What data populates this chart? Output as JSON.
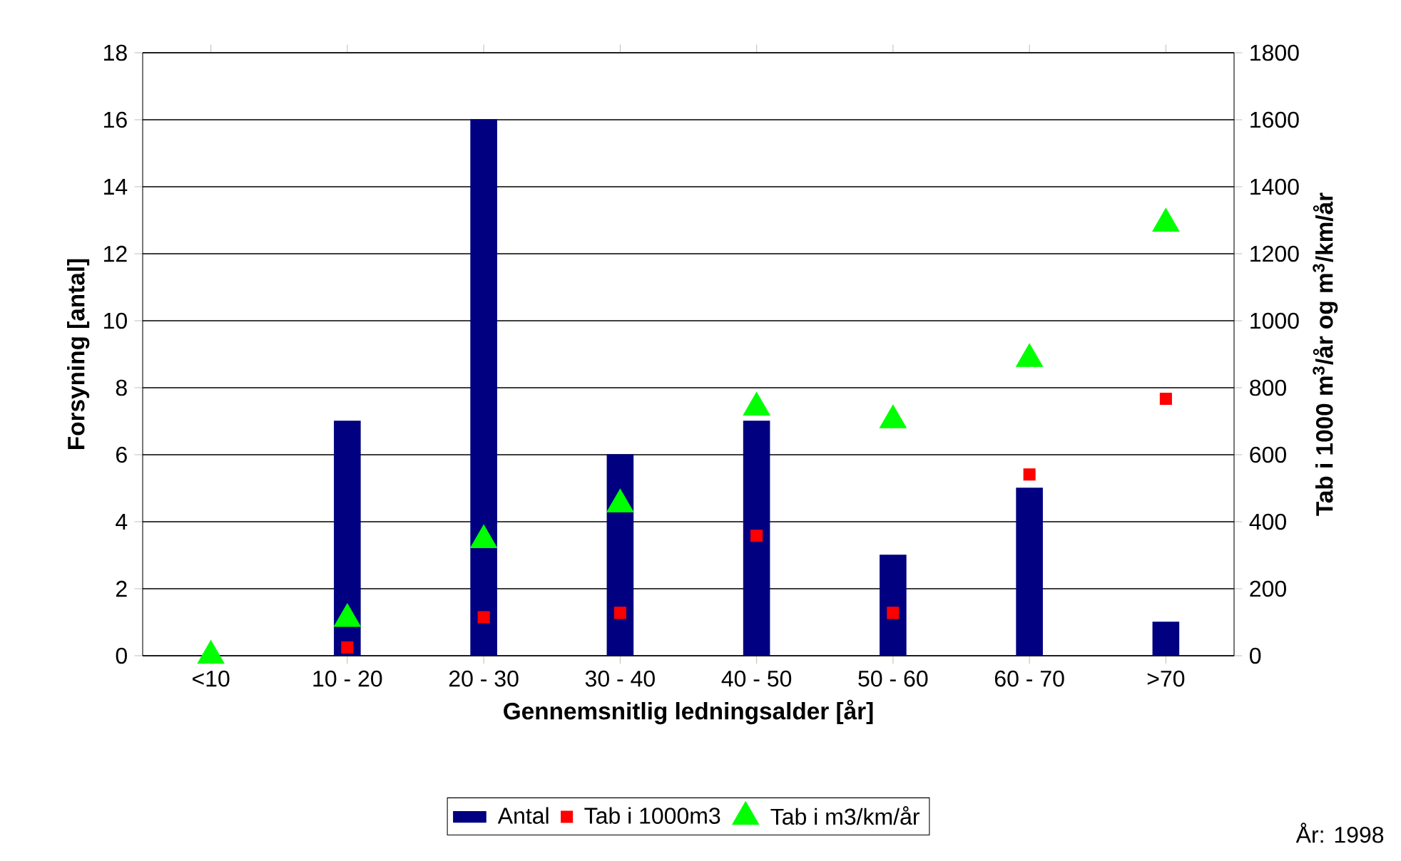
{
  "chart_data": {
    "type": "bar",
    "xlabel": "Gennemsnitlig ledningsalder [år]",
    "ylabel": "Forsyning [antal]",
    "y2label": "Tab i 1000 m$^{3}$/år og m$^{3}$/km/år",
    "categories": [
      "<10",
      "10 - 20",
      "20 - 30",
      "30 - 40",
      "40 - 50",
      "50 - 60",
      "60 - 70",
      ">70"
    ],
    "series": [
      {
        "name": "Antal",
        "color": "#000080",
        "values": [
          0,
          7,
          16,
          6,
          7,
          3,
          5,
          1
        ]
      },
      {
        "name": "Tab i 1000m3",
        "type": "scatter",
        "axis": "y2",
        "marker": "square",
        "color": "#ff0000",
        "values": [
          null,
          25,
          115,
          128,
          358,
          128,
          541,
          767
        ]
      },
      {
        "name": "Tab i m3/km/år",
        "type": "scatter",
        "axis": "y2",
        "marker": "triangle",
        "color": "#00ff00",
        "values": [
          0,
          110,
          345,
          452,
          741,
          703,
          886,
          1290
        ]
      }
    ],
    "ylim": [
      0,
      18
    ],
    "yticks": [
      0,
      2,
      4,
      6,
      8,
      10,
      12,
      14,
      16,
      18
    ],
    "y2lim": [
      0,
      1800
    ],
    "y2ticks": [
      0,
      200,
      400,
      600,
      800,
      1000,
      1200,
      1400,
      1600,
      1800
    ],
    "grid": "y",
    "legend": "bottom",
    "annotations": [
      "År: 1998"
    ]
  }
}
